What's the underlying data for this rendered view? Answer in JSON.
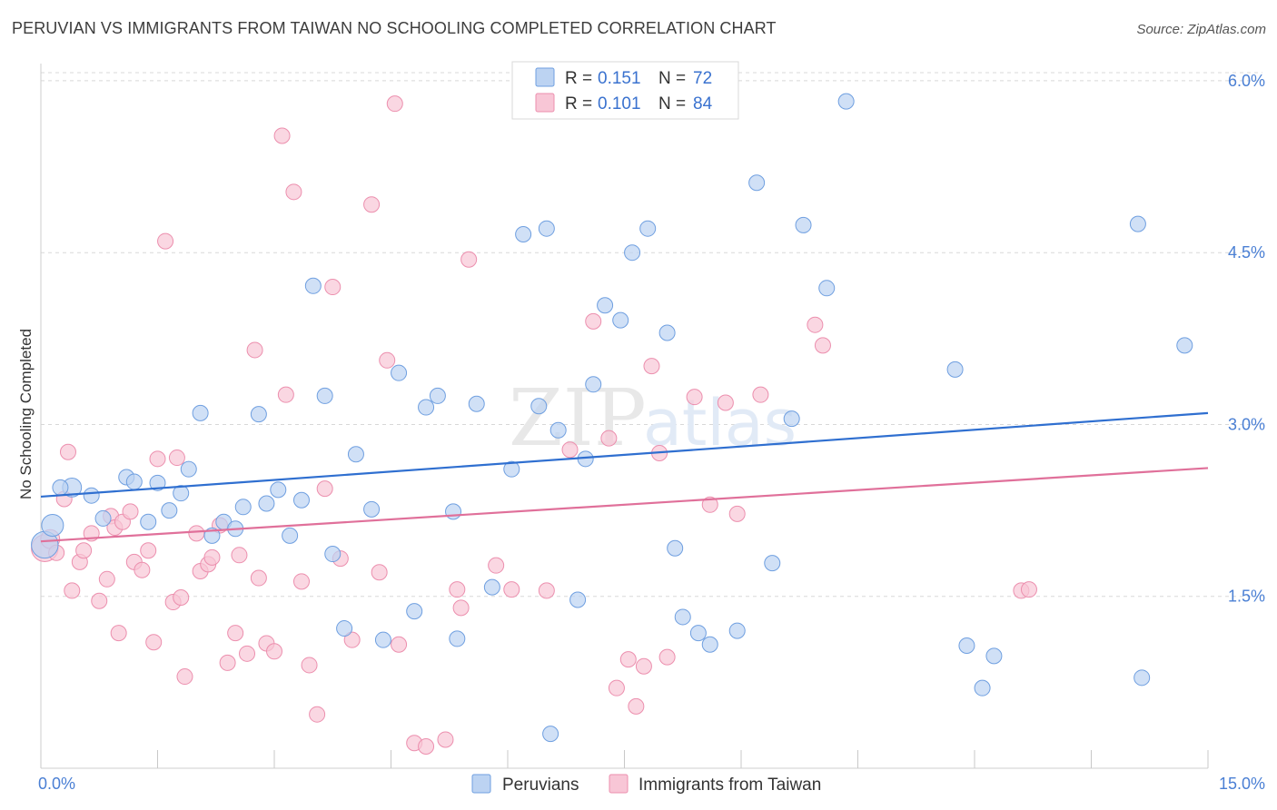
{
  "title": "PERUVIAN VS IMMIGRANTS FROM TAIWAN NO SCHOOLING COMPLETED CORRELATION CHART",
  "source": "Source: ZipAtlas.com",
  "watermark": {
    "zip": "ZIP",
    "atlas": "atlas"
  },
  "colors": {
    "blue_fill": "#bcd3f2",
    "blue_stroke": "#6f9fe0",
    "blue_line": "#2f6fd0",
    "pink_fill": "#f8c6d6",
    "pink_stroke": "#ec8fae",
    "pink_line": "#e0709a",
    "tick_text": "#4a7fd4",
    "grid": "#d8d8d8"
  },
  "legend": {
    "r_label": "R =",
    "n_label": "N =",
    "rows": [
      {
        "name": "Peruvians",
        "r": "0.151",
        "n": "72"
      },
      {
        "name": "Immigrants from Taiwan",
        "r": "0.101",
        "n": "84"
      }
    ]
  },
  "chart_data": {
    "type": "scatter",
    "title": "PERUVIAN VS IMMIGRANTS FROM TAIWAN NO SCHOOLING COMPLETED CORRELATION CHART",
    "xlabel": "",
    "ylabel": "No Schooling Completed",
    "xlim": [
      0,
      15
    ],
    "ylim": [
      0,
      6.15
    ],
    "x_tick_labels": [
      "0.0%",
      "15.0%"
    ],
    "y_ticks": [
      1.5,
      3.0,
      4.5,
      6.0
    ],
    "y_tick_labels": [
      "1.5%",
      "3.0%",
      "4.5%",
      "6.0%"
    ],
    "grid": true,
    "legend_position": "top-center",
    "series": [
      {
        "name": "Peruvians",
        "trend": [
          [
            0,
            2.37
          ],
          [
            15,
            3.1
          ]
        ],
        "points": [
          [
            0.05,
            1.95,
            3
          ],
          [
            0.15,
            2.12,
            2
          ],
          [
            0.4,
            2.45,
            1.5
          ],
          [
            0.25,
            2.45,
            1
          ],
          [
            0.65,
            2.38,
            1
          ],
          [
            0.8,
            2.18,
            1
          ],
          [
            1.1,
            2.54,
            1
          ],
          [
            1.2,
            2.5,
            1
          ],
          [
            1.38,
            2.15,
            1
          ],
          [
            1.5,
            2.49,
            1
          ],
          [
            1.65,
            2.25,
            1
          ],
          [
            1.8,
            2.4,
            1
          ],
          [
            1.9,
            2.61,
            1
          ],
          [
            2.05,
            3.1,
            1
          ],
          [
            2.2,
            2.03,
            1
          ],
          [
            2.35,
            2.15,
            1
          ],
          [
            2.5,
            2.09,
            1
          ],
          [
            2.6,
            2.28,
            1
          ],
          [
            2.8,
            3.09,
            1
          ],
          [
            2.9,
            2.31,
            1
          ],
          [
            3.05,
            2.43,
            1
          ],
          [
            3.2,
            2.03,
            1
          ],
          [
            3.35,
            2.34,
            1
          ],
          [
            3.5,
            4.21,
            1
          ],
          [
            3.65,
            3.25,
            1
          ],
          [
            3.75,
            1.87,
            1
          ],
          [
            3.9,
            1.22,
            1
          ],
          [
            4.05,
            2.74,
            1
          ],
          [
            4.25,
            2.26,
            1
          ],
          [
            4.4,
            1.12,
            1
          ],
          [
            4.6,
            3.45,
            1
          ],
          [
            4.8,
            1.37,
            1
          ],
          [
            4.95,
            3.15,
            1
          ],
          [
            5.1,
            3.25,
            1
          ],
          [
            5.3,
            2.24,
            1
          ],
          [
            5.35,
            1.13,
            1
          ],
          [
            5.6,
            3.18,
            1
          ],
          [
            5.8,
            1.58,
            1
          ],
          [
            6.05,
            2.61,
            1
          ],
          [
            6.2,
            4.66,
            1
          ],
          [
            6.4,
            3.16,
            1
          ],
          [
            6.5,
            4.71,
            1
          ],
          [
            6.55,
            0.3,
            1
          ],
          [
            6.65,
            2.95,
            1
          ],
          [
            6.9,
            1.47,
            1
          ],
          [
            7.0,
            2.7,
            1
          ],
          [
            7.1,
            3.35,
            1
          ],
          [
            7.25,
            4.04,
            1
          ],
          [
            7.45,
            3.91,
            1
          ],
          [
            7.6,
            4.5,
            1
          ],
          [
            7.8,
            4.71,
            1
          ],
          [
            8.05,
            3.8,
            1
          ],
          [
            8.15,
            1.92,
            1
          ],
          [
            8.25,
            1.32,
            1
          ],
          [
            8.45,
            1.18,
            1
          ],
          [
            8.6,
            1.08,
            1
          ],
          [
            8.95,
            1.2,
            1
          ],
          [
            9.2,
            5.11,
            1
          ],
          [
            9.4,
            1.79,
            1
          ],
          [
            9.65,
            3.05,
            1
          ],
          [
            9.8,
            4.74,
            1
          ],
          [
            10.1,
            4.19,
            1
          ],
          [
            10.35,
            5.82,
            1
          ],
          [
            11.75,
            3.48,
            1
          ],
          [
            11.9,
            1.07,
            1
          ],
          [
            12.1,
            0.7,
            1
          ],
          [
            12.25,
            0.98,
            1
          ],
          [
            14.1,
            4.75,
            1
          ],
          [
            14.15,
            0.79,
            1
          ],
          [
            14.7,
            3.69,
            1
          ]
        ]
      },
      {
        "name": "Immigrants from Taiwan",
        "trend": [
          [
            0,
            1.98
          ],
          [
            15,
            2.62
          ]
        ],
        "points": [
          [
            0.05,
            1.92,
            3
          ],
          [
            0.12,
            2.0,
            1.5
          ],
          [
            0.2,
            1.88,
            1
          ],
          [
            0.3,
            2.35,
            1
          ],
          [
            0.35,
            2.76,
            1
          ],
          [
            0.4,
            1.55,
            1
          ],
          [
            0.5,
            1.8,
            1
          ],
          [
            0.55,
            1.9,
            1
          ],
          [
            0.65,
            2.05,
            1
          ],
          [
            0.75,
            1.46,
            1
          ],
          [
            0.85,
            1.65,
            1
          ],
          [
            0.9,
            2.2,
            1
          ],
          [
            0.95,
            2.1,
            1
          ],
          [
            1.0,
            1.18,
            1
          ],
          [
            1.05,
            2.15,
            1
          ],
          [
            1.15,
            2.24,
            1
          ],
          [
            1.2,
            1.8,
            1
          ],
          [
            1.3,
            1.73,
            1
          ],
          [
            1.38,
            1.9,
            1
          ],
          [
            1.45,
            1.1,
            1
          ],
          [
            1.5,
            2.7,
            1
          ],
          [
            1.6,
            4.6,
            1
          ],
          [
            1.7,
            1.45,
            1
          ],
          [
            1.75,
            2.71,
            1
          ],
          [
            1.8,
            1.49,
            1
          ],
          [
            1.85,
            0.8,
            1
          ],
          [
            2.0,
            2.05,
            1
          ],
          [
            2.05,
            1.72,
            1
          ],
          [
            2.15,
            1.78,
            1
          ],
          [
            2.2,
            1.84,
            1
          ],
          [
            2.3,
            2.12,
            1
          ],
          [
            2.4,
            0.92,
            1
          ],
          [
            2.5,
            1.18,
            1
          ],
          [
            2.55,
            1.86,
            1
          ],
          [
            2.65,
            1.0,
            1
          ],
          [
            2.75,
            3.65,
            1
          ],
          [
            2.8,
            1.66,
            1
          ],
          [
            2.9,
            1.09,
            1
          ],
          [
            3.0,
            1.02,
            1
          ],
          [
            3.1,
            5.52,
            1
          ],
          [
            3.15,
            3.26,
            1
          ],
          [
            3.25,
            5.03,
            1
          ],
          [
            3.35,
            1.63,
            1
          ],
          [
            3.45,
            0.9,
            1
          ],
          [
            3.55,
            0.47,
            1
          ],
          [
            3.65,
            2.44,
            1
          ],
          [
            3.75,
            4.2,
            1
          ],
          [
            3.85,
            1.83,
            1
          ],
          [
            4.0,
            1.12,
            1
          ],
          [
            4.25,
            4.92,
            1
          ],
          [
            4.35,
            1.71,
            1
          ],
          [
            4.45,
            3.56,
            1
          ],
          [
            4.55,
            5.8,
            1
          ],
          [
            4.6,
            1.08,
            1
          ],
          [
            4.8,
            0.22,
            1
          ],
          [
            4.95,
            0.19,
            1
          ],
          [
            5.2,
            0.25,
            1
          ],
          [
            5.35,
            1.56,
            1
          ],
          [
            5.4,
            1.4,
            1
          ],
          [
            5.5,
            4.44,
            1
          ],
          [
            5.85,
            1.77,
            1
          ],
          [
            6.05,
            1.56,
            1
          ],
          [
            6.5,
            1.55,
            1
          ],
          [
            6.8,
            2.78,
            1
          ],
          [
            7.1,
            3.9,
            1
          ],
          [
            7.3,
            2.88,
            1
          ],
          [
            7.4,
            0.7,
            1
          ],
          [
            7.55,
            0.95,
            1
          ],
          [
            7.65,
            0.54,
            1
          ],
          [
            7.75,
            0.89,
            1
          ],
          [
            7.85,
            3.51,
            1
          ],
          [
            7.95,
            2.75,
            1
          ],
          [
            8.05,
            0.97,
            1
          ],
          [
            8.4,
            3.24,
            1
          ],
          [
            8.6,
            2.3,
            1
          ],
          [
            8.8,
            3.19,
            1
          ],
          [
            8.95,
            2.22,
            1
          ],
          [
            9.25,
            3.26,
            1
          ],
          [
            9.95,
            3.87,
            1
          ],
          [
            10.05,
            3.69,
            1
          ],
          [
            12.6,
            1.55,
            1
          ],
          [
            12.7,
            1.56,
            1
          ]
        ]
      }
    ]
  }
}
